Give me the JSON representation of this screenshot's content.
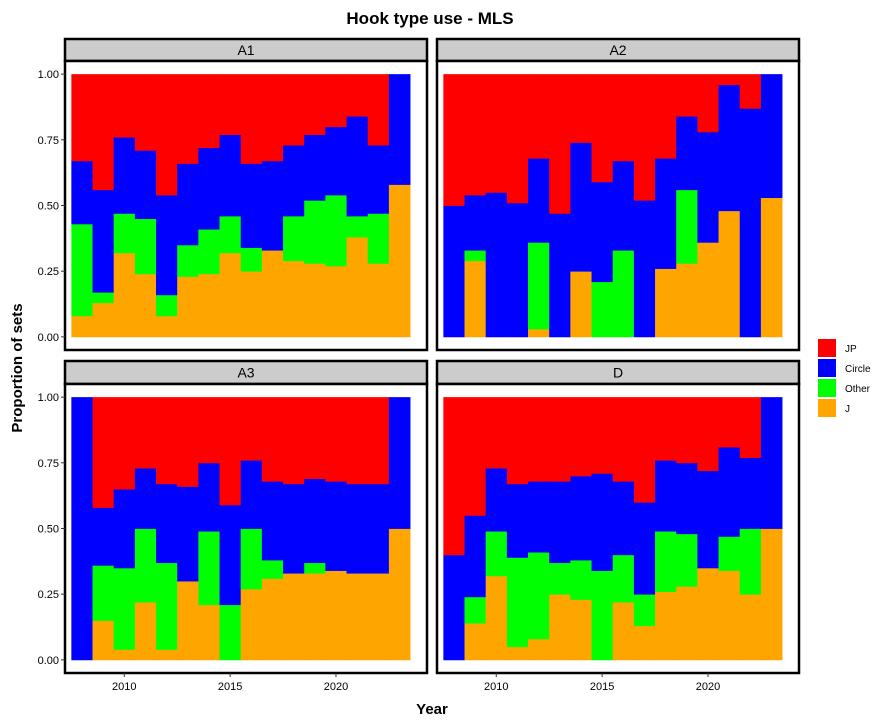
{
  "chart_data": {
    "type": "bar",
    "stacked": true,
    "title": "Hook type use - MLS",
    "xlabel": "Year",
    "ylabel": "Proportion of sets",
    "x_ticks": [
      2010,
      2015,
      2020
    ],
    "y_ticks": [
      "0.00",
      "0.25",
      "0.50",
      "0.75",
      "1.00"
    ],
    "xlim": [
      2007.2,
      2024.3
    ],
    "ylim": [
      -0.05,
      1.05
    ],
    "years": [
      2008,
      2009,
      2010,
      2011,
      2012,
      2013,
      2014,
      2015,
      2016,
      2017,
      2018,
      2019,
      2020,
      2021,
      2022,
      2023
    ],
    "legend": [
      {
        "name": "JP",
        "color": "#FF0000"
      },
      {
        "name": "Circle",
        "color": "#0000FF"
      },
      {
        "name": "Other",
        "color": "#00FF00"
      },
      {
        "name": "J",
        "color": "#FFA500"
      }
    ],
    "legend_position": "right",
    "panels": [
      {
        "label": "A1",
        "bars": [
          {
            "year": 2008,
            "J": 0.08,
            "Other": 0.35,
            "Circle": 0.24,
            "JP": 0.33
          },
          {
            "year": 2009,
            "J": 0.13,
            "Other": 0.04,
            "Circle": 0.39,
            "JP": 0.44
          },
          {
            "year": 2010,
            "J": 0.32,
            "Other": 0.15,
            "Circle": 0.29,
            "JP": 0.24
          },
          {
            "year": 2011,
            "J": 0.24,
            "Other": 0.21,
            "Circle": 0.26,
            "JP": 0.29
          },
          {
            "year": 2012,
            "J": 0.08,
            "Other": 0.08,
            "Circle": 0.38,
            "JP": 0.46
          },
          {
            "year": 2013,
            "J": 0.23,
            "Other": 0.12,
            "Circle": 0.31,
            "JP": 0.34
          },
          {
            "year": 2014,
            "J": 0.24,
            "Other": 0.17,
            "Circle": 0.31,
            "JP": 0.28
          },
          {
            "year": 2015,
            "J": 0.32,
            "Other": 0.14,
            "Circle": 0.31,
            "JP": 0.23
          },
          {
            "year": 2016,
            "J": 0.25,
            "Other": 0.09,
            "Circle": 0.32,
            "JP": 0.34
          },
          {
            "year": 2017,
            "J": 0.33,
            "Other": 0.0,
            "Circle": 0.34,
            "JP": 0.33
          },
          {
            "year": 2018,
            "J": 0.29,
            "Other": 0.17,
            "Circle": 0.27,
            "JP": 0.27
          },
          {
            "year": 2019,
            "J": 0.28,
            "Other": 0.24,
            "Circle": 0.25,
            "JP": 0.23
          },
          {
            "year": 2020,
            "J": 0.27,
            "Other": 0.27,
            "Circle": 0.26,
            "JP": 0.2
          },
          {
            "year": 2021,
            "J": 0.38,
            "Other": 0.08,
            "Circle": 0.38,
            "JP": 0.16
          },
          {
            "year": 2022,
            "J": 0.28,
            "Other": 0.19,
            "Circle": 0.26,
            "JP": 0.27
          },
          {
            "year": 2023,
            "J": 0.58,
            "Other": 0.0,
            "Circle": 0.42,
            "JP": 0.0
          }
        ]
      },
      {
        "label": "A2",
        "bars": [
          {
            "year": 2008,
            "J": 0.0,
            "Other": 0.0,
            "Circle": 0.5,
            "JP": 0.5
          },
          {
            "year": 2009,
            "J": 0.29,
            "Other": 0.04,
            "Circle": 0.21,
            "JP": 0.46
          },
          {
            "year": 2010,
            "J": 0.0,
            "Other": 0.0,
            "Circle": 0.55,
            "JP": 0.45
          },
          {
            "year": 2011,
            "J": 0.0,
            "Other": 0.0,
            "Circle": 0.51,
            "JP": 0.49
          },
          {
            "year": 2012,
            "J": 0.03,
            "Other": 0.33,
            "Circle": 0.32,
            "JP": 0.32
          },
          {
            "year": 2013,
            "J": 0.0,
            "Other": 0.0,
            "Circle": 0.47,
            "JP": 0.53
          },
          {
            "year": 2014,
            "J": 0.25,
            "Other": 0.0,
            "Circle": 0.49,
            "JP": 0.26
          },
          {
            "year": 2015,
            "J": 0.0,
            "Other": 0.21,
            "Circle": 0.38,
            "JP": 0.41
          },
          {
            "year": 2016,
            "J": 0.0,
            "Other": 0.33,
            "Circle": 0.34,
            "JP": 0.33
          },
          {
            "year": 2017,
            "J": 0.0,
            "Other": 0.0,
            "Circle": 0.52,
            "JP": 0.48
          },
          {
            "year": 2018,
            "J": 0.26,
            "Other": 0.0,
            "Circle": 0.42,
            "JP": 0.32
          },
          {
            "year": 2019,
            "J": 0.28,
            "Other": 0.28,
            "Circle": 0.28,
            "JP": 0.16
          },
          {
            "year": 2020,
            "J": 0.36,
            "Other": 0.0,
            "Circle": 0.42,
            "JP": 0.22
          },
          {
            "year": 2021,
            "J": 0.48,
            "Other": 0.0,
            "Circle": 0.48,
            "JP": 0.04
          },
          {
            "year": 2022,
            "J": 0.0,
            "Other": 0.0,
            "Circle": 0.87,
            "JP": 0.13
          },
          {
            "year": 2023,
            "J": 0.53,
            "Other": 0.0,
            "Circle": 0.47,
            "JP": 0.0
          }
        ]
      },
      {
        "label": "A3",
        "bars": [
          {
            "year": 2008,
            "J": 0.0,
            "Other": 0.0,
            "Circle": 1.0,
            "JP": 0.0
          },
          {
            "year": 2009,
            "J": 0.15,
            "Other": 0.21,
            "Circle": 0.22,
            "JP": 0.42
          },
          {
            "year": 2010,
            "J": 0.04,
            "Other": 0.31,
            "Circle": 0.3,
            "JP": 0.35
          },
          {
            "year": 2011,
            "J": 0.22,
            "Other": 0.28,
            "Circle": 0.23,
            "JP": 0.27
          },
          {
            "year": 2012,
            "J": 0.04,
            "Other": 0.33,
            "Circle": 0.3,
            "JP": 0.33
          },
          {
            "year": 2013,
            "J": 0.3,
            "Other": 0.0,
            "Circle": 0.36,
            "JP": 0.34
          },
          {
            "year": 2014,
            "J": 0.21,
            "Other": 0.28,
            "Circle": 0.26,
            "JP": 0.25
          },
          {
            "year": 2015,
            "J": 0.0,
            "Other": 0.21,
            "Circle": 0.38,
            "JP": 0.41
          },
          {
            "year": 2016,
            "J": 0.27,
            "Other": 0.23,
            "Circle": 0.26,
            "JP": 0.24
          },
          {
            "year": 2017,
            "J": 0.31,
            "Other": 0.07,
            "Circle": 0.3,
            "JP": 0.32
          },
          {
            "year": 2018,
            "J": 0.33,
            "Other": 0.0,
            "Circle": 0.34,
            "JP": 0.33
          },
          {
            "year": 2019,
            "J": 0.33,
            "Other": 0.04,
            "Circle": 0.32,
            "JP": 0.31
          },
          {
            "year": 2020,
            "J": 0.34,
            "Other": 0.0,
            "Circle": 0.34,
            "JP": 0.32
          },
          {
            "year": 2021,
            "J": 0.33,
            "Other": 0.0,
            "Circle": 0.34,
            "JP": 0.33
          },
          {
            "year": 2022,
            "J": 0.33,
            "Other": 0.0,
            "Circle": 0.34,
            "JP": 0.33
          },
          {
            "year": 2023,
            "J": 0.5,
            "Other": 0.0,
            "Circle": 0.5,
            "JP": 0.0
          }
        ]
      },
      {
        "label": "D",
        "bars": [
          {
            "year": 2008,
            "J": 0.0,
            "Other": 0.0,
            "Circle": 0.4,
            "JP": 0.6
          },
          {
            "year": 2009,
            "J": 0.14,
            "Other": 0.1,
            "Circle": 0.31,
            "JP": 0.45
          },
          {
            "year": 2010,
            "J": 0.32,
            "Other": 0.17,
            "Circle": 0.24,
            "JP": 0.27
          },
          {
            "year": 2011,
            "J": 0.05,
            "Other": 0.34,
            "Circle": 0.28,
            "JP": 0.33
          },
          {
            "year": 2012,
            "J": 0.08,
            "Other": 0.33,
            "Circle": 0.27,
            "JP": 0.32
          },
          {
            "year": 2013,
            "J": 0.25,
            "Other": 0.12,
            "Circle": 0.31,
            "JP": 0.32
          },
          {
            "year": 2014,
            "J": 0.23,
            "Other": 0.15,
            "Circle": 0.32,
            "JP": 0.3
          },
          {
            "year": 2015,
            "J": 0.0,
            "Other": 0.34,
            "Circle": 0.37,
            "JP": 0.29
          },
          {
            "year": 2016,
            "J": 0.22,
            "Other": 0.18,
            "Circle": 0.28,
            "JP": 0.32
          },
          {
            "year": 2017,
            "J": 0.13,
            "Other": 0.12,
            "Circle": 0.35,
            "JP": 0.4
          },
          {
            "year": 2018,
            "J": 0.26,
            "Other": 0.23,
            "Circle": 0.27,
            "JP": 0.24
          },
          {
            "year": 2019,
            "J": 0.28,
            "Other": 0.2,
            "Circle": 0.27,
            "JP": 0.25
          },
          {
            "year": 2020,
            "J": 0.35,
            "Other": 0.0,
            "Circle": 0.37,
            "JP": 0.28
          },
          {
            "year": 2021,
            "J": 0.34,
            "Other": 0.13,
            "Circle": 0.34,
            "JP": 0.19
          },
          {
            "year": 2022,
            "J": 0.25,
            "Other": 0.25,
            "Circle": 0.27,
            "JP": 0.23
          },
          {
            "year": 2023,
            "J": 0.5,
            "Other": 0.0,
            "Circle": 0.5,
            "JP": 0.0
          }
        ]
      }
    ]
  }
}
